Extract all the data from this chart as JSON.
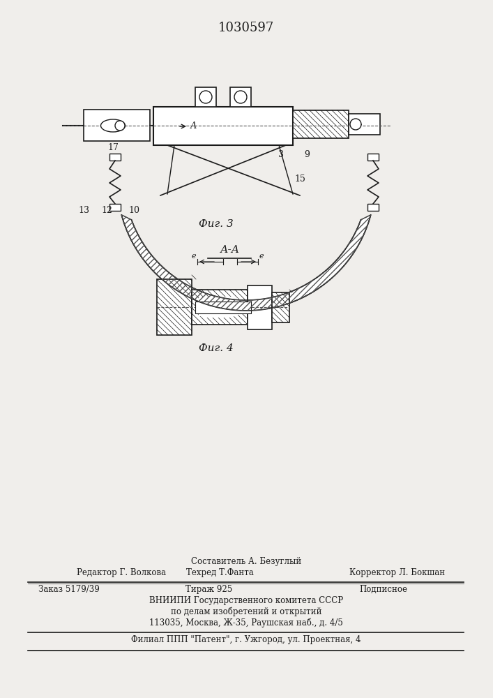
{
  "title_number": "1030597",
  "fig3_label": "Фиг. 3",
  "fig4_label": "Фиг. 4",
  "section_label": "А-А",
  "bg_color": "#f0eeeb",
  "line_color": "#1a1a1a",
  "hatch_color": "#1a1a1a",
  "label_17": "17",
  "label_3": "3",
  "label_9": "9",
  "label_15": "15",
  "label_13": "13",
  "label_12": "12",
  "label_10": "10",
  "label_e1": "e",
  "label_e2": "e",
  "label_A": "А",
  "footer_line1": "Составитель А. Безуглый",
  "footer_line2_left": "Редактор Г. Волкова",
  "footer_line2_mid": "Техред Т.Фанта",
  "footer_line2_right": "Корректор Л. Бокшан",
  "footer_line3_left": "Заказ 5179/39",
  "footer_line3_mid": "Тираж 925",
  "footer_line3_right": "Подписное",
  "footer_line4": "ВНИИПИ Государственного комитета СССР",
  "footer_line5": "по делам изобретений и открытий",
  "footer_line6": "113035, Москва, Ж-35, Раушская наб., д. 4/5",
  "footer_line7": "Филиал ППП \"Патент\", г. Ужгород, ул. Проектная, 4"
}
